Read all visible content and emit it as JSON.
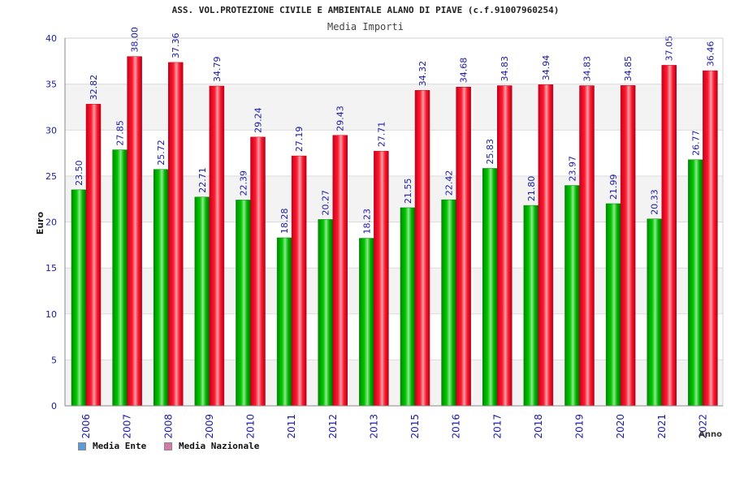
{
  "chart_data": {
    "type": "bar",
    "title": "ASS. VOL.PROTEZIONE CIVILE E AMBIENTALE ALANO DI PIAVE (c.f.91007960254)",
    "subtitle": "Media Importi",
    "xlabel": "Anno",
    "ylabel": "Euro",
    "ylim": [
      0,
      40
    ],
    "yticks": [
      0,
      5,
      10,
      15,
      20,
      25,
      30,
      35,
      40
    ],
    "categories": [
      "2006",
      "2007",
      "2008",
      "2009",
      "2010",
      "2011",
      "2012",
      "2013",
      "2015",
      "2016",
      "2017",
      "2018",
      "2019",
      "2020",
      "2021",
      "2022"
    ],
    "series": [
      {
        "name": "Media Ente",
        "color": "#00b400",
        "legend_color": "#5b9bd5",
        "values": [
          23.5,
          27.85,
          25.72,
          22.71,
          22.39,
          18.28,
          20.27,
          18.23,
          21.55,
          22.42,
          25.83,
          21.8,
          23.97,
          21.99,
          20.33,
          26.77
        ],
        "labels": [
          "23.50",
          "27.85",
          "25.72",
          "22.71",
          "22.39",
          "18.28",
          "20.27",
          "18.23",
          "21.55",
          "22.42",
          "25.83",
          "21.80",
          "23.97",
          "21.99",
          "20.33",
          "26.77"
        ]
      },
      {
        "name": "Media Nazionale",
        "color": "#ee1c2e",
        "legend_color": "#d67aa6",
        "values": [
          32.82,
          38.0,
          37.36,
          34.79,
          29.24,
          27.19,
          29.43,
          27.71,
          34.32,
          34.68,
          34.83,
          34.94,
          34.83,
          34.85,
          37.05,
          36.46
        ],
        "labels": [
          "32.82",
          "38.00",
          "37.36",
          "34.79",
          "29.24",
          "27.19",
          "29.43",
          "27.71",
          "34.32",
          "34.68",
          "34.83",
          "34.94",
          "34.83",
          "34.85",
          "37.05",
          "36.46"
        ]
      }
    ],
    "grid": true,
    "legend_position": "bottom-left"
  }
}
